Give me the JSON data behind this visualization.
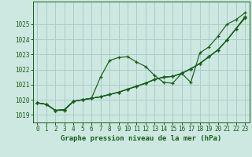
{
  "xlabel": "Graphe pression niveau de la mer (hPa)",
  "background_color": "#cce8e0",
  "grid_color": "#a8cfc8",
  "line_color": "#1a5c1a",
  "x_values": [
    0,
    1,
    2,
    3,
    4,
    5,
    6,
    7,
    8,
    9,
    10,
    11,
    12,
    13,
    14,
    15,
    16,
    17,
    18,
    19,
    20,
    21,
    22,
    23
  ],
  "series1": [
    1019.8,
    1019.7,
    1019.3,
    1019.3,
    1019.9,
    1020.0,
    1020.1,
    1021.5,
    1022.6,
    1022.8,
    1022.85,
    1022.5,
    1022.2,
    1021.6,
    1021.15,
    1021.1,
    1021.75,
    1021.15,
    1023.1,
    1023.5,
    1024.2,
    1025.0,
    1025.3,
    1025.75
  ],
  "series2": [
    1019.8,
    1019.7,
    1019.3,
    1019.35,
    1019.9,
    1020.0,
    1020.1,
    1020.2,
    1020.35,
    1020.5,
    1020.7,
    1020.9,
    1021.1,
    1021.35,
    1021.5,
    1021.55,
    1021.75,
    1022.05,
    1022.4,
    1022.85,
    1023.3,
    1023.95,
    1024.7,
    1025.4
  ],
  "series3": [
    1019.8,
    1019.7,
    1019.3,
    1019.35,
    1019.9,
    1020.0,
    1020.1,
    1020.2,
    1020.35,
    1020.5,
    1020.7,
    1020.9,
    1021.1,
    1021.35,
    1021.5,
    1021.55,
    1021.75,
    1022.05,
    1022.4,
    1022.85,
    1023.3,
    1023.95,
    1024.7,
    1025.45
  ],
  "series4": [
    1019.8,
    1019.7,
    1019.3,
    1019.35,
    1019.9,
    1020.0,
    1020.1,
    1020.2,
    1020.35,
    1020.5,
    1020.7,
    1020.9,
    1021.1,
    1021.35,
    1021.5,
    1021.55,
    1021.75,
    1022.05,
    1022.4,
    1022.85,
    1023.3,
    1023.95,
    1024.7,
    1025.5
  ],
  "ylim": [
    1018.5,
    1026.5
  ],
  "yticks": [
    1019,
    1020,
    1021,
    1022,
    1023,
    1024,
    1025
  ],
  "xticks": [
    0,
    1,
    2,
    3,
    4,
    5,
    6,
    7,
    8,
    9,
    10,
    11,
    12,
    13,
    14,
    15,
    16,
    17,
    18,
    19,
    20,
    21,
    22,
    23
  ],
  "tick_fontsize": 5.5,
  "label_fontsize": 6.5
}
